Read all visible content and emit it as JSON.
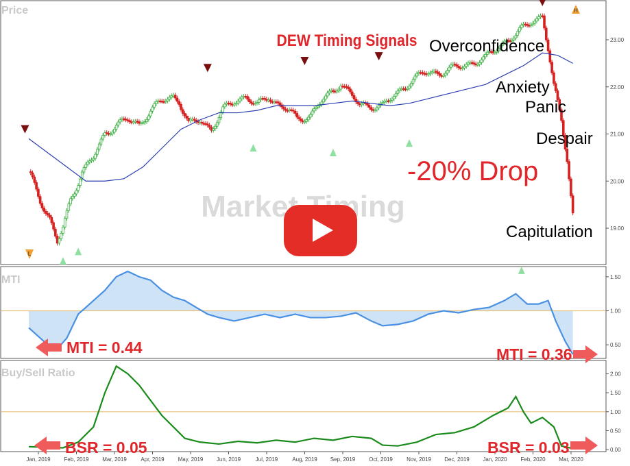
{
  "chart_data": {
    "type": "line",
    "x_ticks": [
      "Jan, 2019",
      "Feb, 2019",
      "Mar, 2019",
      "Apr, 2019",
      "May, 2019",
      "Jun, 2019",
      "Jul, 2019",
      "Aug, 2019",
      "Sep, 2019",
      "Oct, 2019",
      "Nov, 2019",
      "Dec, 2019",
      "Jan, 2020",
      "Feb, 2020",
      "Mar, 2020"
    ],
    "price_panel": {
      "title": "Price",
      "yticks": [
        19.0,
        20.0,
        21.0,
        22.0,
        23.0
      ],
      "ylim": [
        18.2,
        23.8
      ],
      "close": [
        [
          0,
          20.2
        ],
        [
          0.3,
          19.6
        ],
        [
          0.55,
          19.2
        ],
        [
          0.75,
          18.7
        ],
        [
          0.9,
          19.0
        ],
        [
          1.1,
          19.6
        ],
        [
          1.4,
          20.2
        ],
        [
          1.7,
          20.5
        ],
        [
          2.0,
          21.0
        ],
        [
          2.3,
          21.2
        ],
        [
          2.6,
          21.3
        ],
        [
          2.9,
          21.2
        ],
        [
          3.2,
          21.5
        ],
        [
          3.5,
          21.7
        ],
        [
          3.8,
          21.8
        ],
        [
          3.95,
          21.7
        ],
        [
          4.2,
          21.2
        ],
        [
          4.5,
          21.3
        ],
        [
          4.8,
          21.1
        ],
        [
          5.1,
          21.5
        ],
        [
          5.4,
          21.7
        ],
        [
          5.7,
          21.8
        ],
        [
          6.0,
          21.6
        ],
        [
          6.3,
          21.8
        ],
        [
          6.6,
          21.6
        ],
        [
          6.85,
          21.5
        ],
        [
          7.05,
          21.3
        ],
        [
          7.4,
          21.4
        ],
        [
          7.7,
          21.7
        ],
        [
          8.0,
          21.9
        ],
        [
          8.2,
          22.1
        ],
        [
          8.4,
          21.9
        ],
        [
          8.7,
          21.6
        ],
        [
          9.0,
          21.6
        ],
        [
          9.3,
          21.6
        ],
        [
          9.6,
          21.8
        ],
        [
          10.0,
          22.1
        ],
        [
          10.4,
          22.3
        ],
        [
          10.8,
          22.3
        ],
        [
          11.2,
          22.4
        ],
        [
          11.6,
          22.5
        ],
        [
          12.0,
          22.6
        ],
        [
          12.4,
          22.9
        ],
        [
          12.8,
          23.1
        ],
        [
          13.2,
          23.4
        ],
        [
          13.5,
          23.5
        ],
        [
          13.65,
          22.8
        ],
        [
          13.8,
          22.0
        ],
        [
          14.0,
          21.3
        ],
        [
          14.15,
          20.5
        ],
        [
          14.3,
          19.3
        ]
      ],
      "moving_average": [
        [
          0,
          20.9
        ],
        [
          0.5,
          20.6
        ],
        [
          1.0,
          20.3
        ],
        [
          1.5,
          20.0
        ],
        [
          2.0,
          20.0
        ],
        [
          2.5,
          20.05
        ],
        [
          3.0,
          20.3
        ],
        [
          3.5,
          20.7
        ],
        [
          4.0,
          21.1
        ],
        [
          4.5,
          21.3
        ],
        [
          5.0,
          21.45
        ],
        [
          5.5,
          21.45
        ],
        [
          6.0,
          21.5
        ],
        [
          6.5,
          21.6
        ],
        [
          7.0,
          21.6
        ],
        [
          7.5,
          21.6
        ],
        [
          8.0,
          21.65
        ],
        [
          8.5,
          21.7
        ],
        [
          9.0,
          21.65
        ],
        [
          9.5,
          21.6
        ],
        [
          10.0,
          21.65
        ],
        [
          10.5,
          21.75
        ],
        [
          11.0,
          21.85
        ],
        [
          11.5,
          21.95
        ],
        [
          12.0,
          22.05
        ],
        [
          12.5,
          22.25
        ],
        [
          13.0,
          22.45
        ],
        [
          13.5,
          22.72
        ],
        [
          13.9,
          22.67
        ],
        [
          14.3,
          22.5
        ]
      ],
      "series_colors": {
        "up": "#3cb043",
        "down": "#d62020",
        "ma": "#2b3fb3"
      },
      "sell_signals": [
        [
          -0.1,
          21.1
        ],
        [
          4.7,
          22.4
        ],
        [
          7.25,
          22.55
        ],
        [
          9.2,
          22.65
        ],
        [
          13.5,
          23.8
        ]
      ],
      "buy_signals": [
        [
          0.9,
          18.3
        ],
        [
          1.3,
          18.5
        ],
        [
          5.9,
          20.7
        ],
        [
          8.0,
          20.6
        ],
        [
          10.0,
          20.8
        ],
        [
          12.95,
          18.1
        ]
      ],
      "low_label": "L",
      "high_label": "H",
      "signals_title": "DEW Timing Signals",
      "emotions": [
        "Overconfidence",
        "Anxiety",
        "Panic",
        "Despair",
        "Capitulation"
      ],
      "drop_label": "-20% Drop",
      "watermark": "Market Timing"
    },
    "mti_panel": {
      "title": "MTI",
      "yticks": [
        0.5,
        1.0,
        1.5
      ],
      "ylim": [
        0.3,
        1.65
      ],
      "reference_line": 1.0,
      "values": [
        [
          0,
          0.75
        ],
        [
          0.2,
          0.65
        ],
        [
          0.5,
          0.5
        ],
        [
          0.75,
          0.44
        ],
        [
          1.0,
          0.6
        ],
        [
          1.3,
          0.95
        ],
        [
          1.6,
          1.1
        ],
        [
          2.0,
          1.3
        ],
        [
          2.3,
          1.5
        ],
        [
          2.6,
          1.58
        ],
        [
          2.9,
          1.5
        ],
        [
          3.2,
          1.45
        ],
        [
          3.5,
          1.3
        ],
        [
          3.8,
          1.2
        ],
        [
          4.1,
          1.15
        ],
        [
          4.4,
          1.05
        ],
        [
          4.7,
          0.95
        ],
        [
          5.0,
          0.9
        ],
        [
          5.4,
          0.85
        ],
        [
          5.8,
          0.9
        ],
        [
          6.2,
          0.95
        ],
        [
          6.6,
          0.9
        ],
        [
          7.0,
          0.95
        ],
        [
          7.4,
          0.9
        ],
        [
          7.8,
          0.9
        ],
        [
          8.2,
          0.92
        ],
        [
          8.6,
          0.97
        ],
        [
          9.0,
          0.85
        ],
        [
          9.3,
          0.78
        ],
        [
          9.7,
          0.8
        ],
        [
          10.1,
          0.85
        ],
        [
          10.5,
          0.95
        ],
        [
          10.9,
          1.0
        ],
        [
          11.3,
          0.97
        ],
        [
          11.7,
          1.02
        ],
        [
          12.1,
          1.05
        ],
        [
          12.5,
          1.15
        ],
        [
          12.8,
          1.25
        ],
        [
          13.1,
          1.1
        ],
        [
          13.4,
          1.1
        ],
        [
          13.65,
          1.15
        ],
        [
          13.85,
          0.85
        ],
        [
          14.1,
          0.55
        ],
        [
          14.3,
          0.36
        ]
      ],
      "left_callout": "MTI = 0.44",
      "right_callout": "MTI = 0.36",
      "line_color": "#4a90e2",
      "fill_color": "#cfe3f7",
      "ref_color": "#e8c27a"
    },
    "bsr_panel": {
      "title": "Buy/Sell Ratio",
      "yticks": [
        0.0,
        0.5,
        1.0,
        1.5,
        2.0
      ],
      "ylim": [
        -0.05,
        2.35
      ],
      "reference_line": 1.0,
      "values": [
        [
          0,
          0.08
        ],
        [
          0.5,
          0.06
        ],
        [
          0.9,
          0.05
        ],
        [
          1.3,
          0.2
        ],
        [
          1.7,
          0.6
        ],
        [
          2.0,
          1.5
        ],
        [
          2.3,
          2.2
        ],
        [
          2.6,
          2.0
        ],
        [
          2.9,
          1.7
        ],
        [
          3.2,
          1.3
        ],
        [
          3.5,
          0.9
        ],
        [
          3.8,
          0.6
        ],
        [
          4.1,
          0.3
        ],
        [
          4.5,
          0.2
        ],
        [
          5.0,
          0.15
        ],
        [
          5.5,
          0.22
        ],
        [
          6.0,
          0.18
        ],
        [
          6.5,
          0.25
        ],
        [
          7.0,
          0.2
        ],
        [
          7.5,
          0.3
        ],
        [
          8.0,
          0.25
        ],
        [
          8.5,
          0.35
        ],
        [
          9.0,
          0.3
        ],
        [
          9.3,
          0.12
        ],
        [
          9.7,
          0.1
        ],
        [
          10.2,
          0.2
        ],
        [
          10.7,
          0.4
        ],
        [
          11.2,
          0.45
        ],
        [
          11.7,
          0.6
        ],
        [
          12.2,
          0.9
        ],
        [
          12.6,
          1.1
        ],
        [
          12.8,
          1.4
        ],
        [
          13.0,
          1.0
        ],
        [
          13.2,
          0.7
        ],
        [
          13.5,
          0.85
        ],
        [
          13.8,
          0.6
        ],
        [
          14.0,
          0.1
        ],
        [
          14.3,
          0.03
        ]
      ],
      "left_callout": "BSR = 0.05",
      "right_callout": "BSR = 0.03",
      "line_color": "#1a8a1a",
      "ref_color": "#e8c27a"
    },
    "play_button_color": "#e52d27"
  }
}
